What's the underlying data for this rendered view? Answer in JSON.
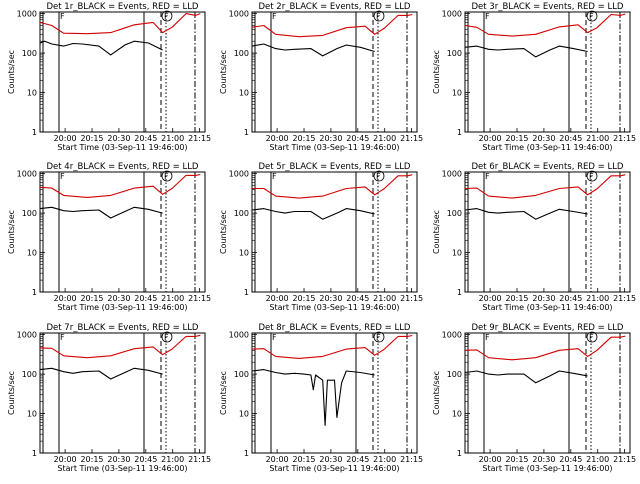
{
  "figure": {
    "ylabel": "Counts/sec",
    "xlabel": "Start Time (03-Sep-11 19:46:00)",
    "x_ticks": [
      "20:00",
      "20:15",
      "20:30",
      "20:45",
      "21:00",
      "21:15"
    ],
    "y_ticks": [
      "1",
      "10",
      "100",
      "1000"
    ],
    "marker_label_left": "F",
    "marker_label_top": "F"
  },
  "chart_data": [
    {
      "type": "line",
      "title": "Det 1r_BLACK = Events, RED = LLD",
      "xlabel": "Start Time (03-Sep-11 19:46:00)",
      "ylabel": "Counts/sec",
      "ylim": [
        1,
        1100
      ],
      "yscale": "log",
      "series": [
        {
          "name": "Events",
          "color": "#000000",
          "x": [
            0,
            2,
            5,
            10,
            14,
            18,
            25,
            30,
            36,
            40,
            46,
            52,
            55,
            58
          ],
          "y": [
            180,
            200,
            170,
            150,
            175,
            170,
            150,
            90,
            160,
            200,
            180,
            120,
            null,
            null
          ]
        },
        {
          "name": "LLD",
          "color": "#d40000",
          "x": [
            0,
            5,
            10,
            20,
            30,
            40,
            48,
            52,
            56,
            62,
            66,
            68
          ],
          "y": [
            600,
            500,
            320,
            310,
            330,
            520,
            600,
            330,
            450,
            1000,
            900,
            1000
          ]
        }
      ]
    },
    {
      "type": "line",
      "title": "Det 2r_BLACK = Events, RED = LLD",
      "xlabel": "Start Time (03-Sep-11 19:46:00)",
      "ylabel": "Counts/sec",
      "ylim": [
        1,
        1100
      ],
      "yscale": "log",
      "series": [
        {
          "name": "Events",
          "color": "#000000",
          "x": [
            0,
            5,
            10,
            14,
            18,
            25,
            30,
            36,
            40,
            46,
            52
          ],
          "y": [
            150,
            170,
            130,
            120,
            125,
            130,
            85,
            130,
            160,
            140,
            110
          ]
        },
        {
          "name": "LLD",
          "color": "#d40000",
          "x": [
            0,
            5,
            10,
            20,
            30,
            40,
            48,
            52,
            56,
            62,
            66,
            68
          ],
          "y": [
            450,
            500,
            300,
            260,
            280,
            440,
            480,
            300,
            420,
            900,
            900,
            950
          ]
        }
      ]
    },
    {
      "type": "line",
      "title": "Det 3r_BLACK = Events, RED = LLD",
      "xlabel": "Start Time (03-Sep-11 19:46:00)",
      "ylabel": "Counts/sec",
      "ylim": [
        1,
        1100
      ],
      "yscale": "log",
      "series": [
        {
          "name": "Events",
          "color": "#000000",
          "x": [
            0,
            5,
            10,
            14,
            18,
            25,
            30,
            36,
            40,
            46,
            52
          ],
          "y": [
            140,
            150,
            125,
            120,
            125,
            130,
            80,
            120,
            150,
            130,
            110
          ]
        },
        {
          "name": "LLD",
          "color": "#d40000",
          "x": [
            0,
            5,
            10,
            20,
            30,
            40,
            48,
            52,
            56,
            62,
            66,
            68
          ],
          "y": [
            500,
            450,
            300,
            270,
            300,
            460,
            520,
            330,
            440,
            950,
            900,
            980
          ]
        }
      ]
    },
    {
      "type": "line",
      "title": "Det 4r_BLACK = Events, RED = LLD",
      "xlabel": "Start Time (03-Sep-11 19:46:00)",
      "ylabel": "Counts/sec",
      "ylim": [
        1,
        1100
      ],
      "yscale": "log",
      "series": [
        {
          "name": "Events",
          "color": "#000000",
          "x": [
            0,
            5,
            10,
            14,
            18,
            25,
            30,
            36,
            40,
            46,
            52
          ],
          "y": [
            130,
            140,
            115,
            110,
            115,
            120,
            75,
            110,
            140,
            125,
            100
          ]
        },
        {
          "name": "LLD",
          "color": "#d40000",
          "x": [
            0,
            5,
            10,
            20,
            30,
            40,
            48,
            52,
            56,
            62,
            66,
            68
          ],
          "y": [
            450,
            430,
            280,
            250,
            280,
            430,
            480,
            300,
            420,
            900,
            900,
            950
          ]
        }
      ]
    },
    {
      "type": "line",
      "title": "Det 5r_BLACK = Events, RED = LLD",
      "xlabel": "Start Time (03-Sep-11 19:46:00)",
      "ylabel": "Counts/sec",
      "ylim": [
        1,
        1100
      ],
      "yscale": "log",
      "series": [
        {
          "name": "Events",
          "color": "#000000",
          "x": [
            0,
            5,
            10,
            14,
            18,
            25,
            30,
            36,
            40,
            46,
            52
          ],
          "y": [
            120,
            130,
            110,
            100,
            110,
            110,
            70,
            100,
            130,
            115,
            95
          ]
        },
        {
          "name": "LLD",
          "color": "#d40000",
          "x": [
            0,
            5,
            10,
            20,
            30,
            40,
            48,
            52,
            56,
            62,
            66,
            68
          ],
          "y": [
            420,
            420,
            270,
            240,
            270,
            420,
            460,
            290,
            410,
            880,
            880,
            940
          ]
        }
      ]
    },
    {
      "type": "line",
      "title": "Det 6r_BLACK = Events, RED = LLD",
      "xlabel": "Start Time (03-Sep-11 19:46:00)",
      "ylabel": "Counts/sec",
      "ylim": [
        1,
        1100
      ],
      "yscale": "log",
      "series": [
        {
          "name": "Events",
          "color": "#000000",
          "x": [
            0,
            5,
            10,
            14,
            18,
            25,
            30,
            36,
            40,
            46,
            52
          ],
          "y": [
            120,
            130,
            105,
            100,
            105,
            110,
            70,
            100,
            125,
            110,
            95
          ]
        },
        {
          "name": "LLD",
          "color": "#d40000",
          "x": [
            0,
            5,
            10,
            20,
            30,
            40,
            48,
            52,
            56,
            62,
            66,
            68
          ],
          "y": [
            420,
            430,
            270,
            240,
            280,
            420,
            460,
            290,
            410,
            880,
            880,
            940
          ]
        }
      ]
    },
    {
      "type": "line",
      "title": "Det 7r_BLACK = Events, RED = LLD",
      "xlabel": "Start Time (03-Sep-11 19:46:00)",
      "ylabel": "Counts/sec",
      "ylim": [
        1,
        1100
      ],
      "yscale": "log",
      "series": [
        {
          "name": "Events",
          "color": "#000000",
          "x": [
            0,
            5,
            10,
            14,
            18,
            25,
            30,
            36,
            40,
            46,
            52
          ],
          "y": [
            130,
            140,
            115,
            105,
            115,
            120,
            75,
            110,
            140,
            125,
            100
          ]
        },
        {
          "name": "LLD",
          "color": "#d40000",
          "x": [
            0,
            5,
            10,
            20,
            30,
            40,
            48,
            52,
            56,
            62,
            66,
            68
          ],
          "y": [
            460,
            450,
            290,
            260,
            290,
            440,
            490,
            310,
            430,
            900,
            900,
            960
          ]
        }
      ]
    },
    {
      "type": "line",
      "title": "Det 8r_BLACK = Events, RED = LLD",
      "xlabel": "Start Time (03-Sep-11 19:46:00)",
      "ylabel": "Counts/sec",
      "ylim": [
        1,
        1100
      ],
      "yscale": "log",
      "series": [
        {
          "name": "Events",
          "color": "#000000",
          "x": [
            0,
            5,
            10,
            14,
            18,
            22,
            25,
            26,
            27,
            30,
            31,
            32,
            35,
            36,
            38,
            40,
            46,
            52
          ],
          "y": [
            120,
            130,
            110,
            100,
            105,
            100,
            95,
            40,
            95,
            70,
            5,
            70,
            70,
            8,
            60,
            120,
            110,
            95
          ]
        },
        {
          "name": "LLD",
          "color": "#d40000",
          "x": [
            0,
            5,
            10,
            20,
            30,
            40,
            48,
            52,
            56,
            62,
            66,
            68
          ],
          "y": [
            430,
            440,
            280,
            250,
            280,
            430,
            470,
            300,
            420,
            900,
            900,
            950
          ]
        }
      ]
    },
    {
      "type": "line",
      "title": "Det 9r_BLACK = Events, RED = LLD",
      "xlabel": "Start Time (03-Sep-11 19:46:00)",
      "ylabel": "Counts/sec",
      "ylim": [
        1,
        1100
      ],
      "yscale": "log",
      "series": [
        {
          "name": "Events",
          "color": "#000000",
          "x": [
            0,
            5,
            10,
            14,
            18,
            25,
            30,
            36,
            40,
            46,
            52
          ],
          "y": [
            110,
            120,
            100,
            95,
            100,
            100,
            60,
            90,
            120,
            105,
            90
          ]
        },
        {
          "name": "LLD",
          "color": "#d40000",
          "x": [
            0,
            5,
            10,
            20,
            30,
            40,
            48,
            52,
            56,
            62,
            66,
            68
          ],
          "y": [
            400,
            410,
            260,
            230,
            260,
            400,
            440,
            280,
            400,
            860,
            860,
            920
          ]
        }
      ]
    }
  ]
}
